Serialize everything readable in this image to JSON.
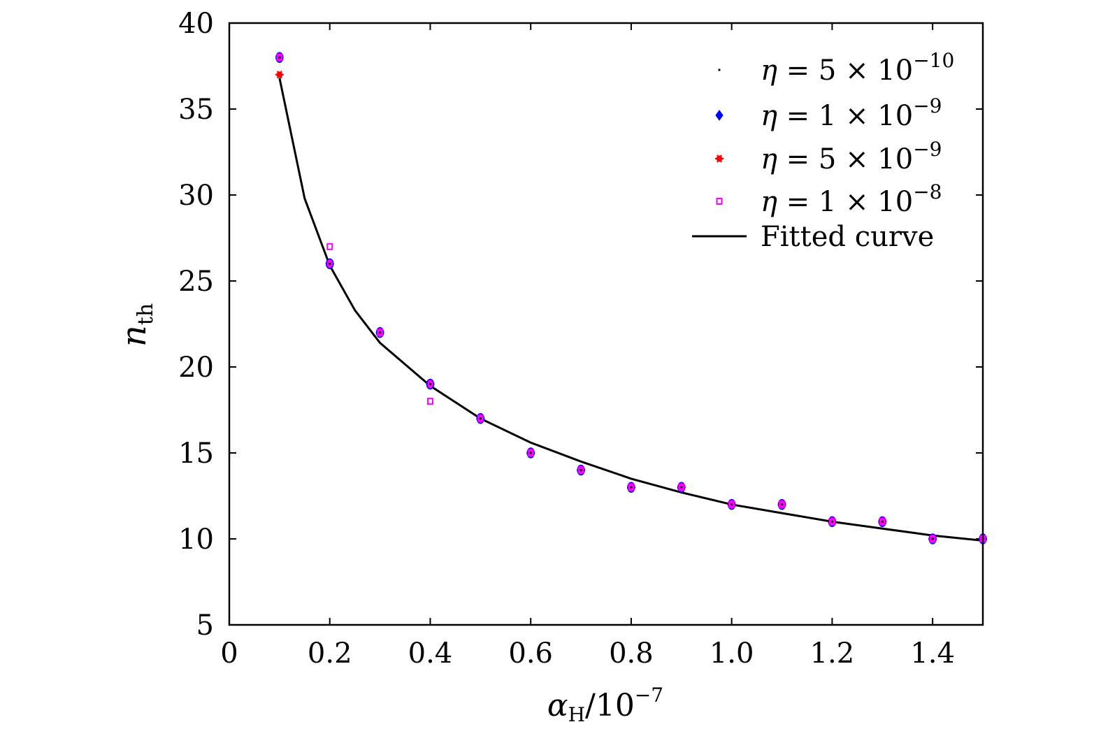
{
  "chart_data": {
    "type": "scatter",
    "xlabel": {
      "symbol": "α",
      "sub": "H",
      "div": "/10",
      "exp": "−7"
    },
    "ylabel": {
      "symbol": "n",
      "sub": "th"
    },
    "xlim": [
      0,
      1.5
    ],
    "ylim": [
      5,
      40
    ],
    "xticks": [
      0,
      0.2,
      0.4,
      0.6,
      0.8,
      1.0,
      1.2,
      1.4
    ],
    "xtick_labels": [
      "0",
      "0.2",
      "0.4",
      "0.6",
      "0.8",
      "1.0",
      "1.2",
      "1.4"
    ],
    "yticks": [
      5,
      10,
      15,
      20,
      25,
      30,
      35,
      40
    ],
    "ytick_labels": [
      "5",
      "10",
      "15",
      "20",
      "25",
      "30",
      "35",
      "40"
    ],
    "grid": false,
    "legend_position": "top-right",
    "series": [
      {
        "name": "η = 5 × 10−10",
        "eta": "η",
        "mant": "5",
        "exp": "−10",
        "color": "#000000",
        "marker": "dot",
        "x": [
          0.1,
          0.2,
          0.3,
          0.4,
          0.5,
          0.6,
          0.7,
          0.8,
          0.9,
          1.0,
          1.1,
          1.2,
          1.3,
          1.4,
          1.5
        ],
        "y": [
          38,
          26,
          22,
          19,
          17,
          15,
          14,
          13,
          13,
          12,
          12,
          11,
          11,
          10,
          10
        ]
      },
      {
        "name": "η = 1 × 10−9",
        "eta": "η",
        "mant": "1",
        "exp": "−9",
        "color": "#0000ff",
        "marker": "diamond",
        "x": [
          0.1,
          0.2,
          0.3,
          0.4,
          0.5,
          0.6,
          0.7,
          0.8,
          0.9,
          1.0,
          1.1,
          1.2,
          1.3,
          1.4,
          1.5
        ],
        "y": [
          38,
          26,
          22,
          19,
          17,
          15,
          14,
          13,
          13,
          12,
          12,
          11,
          11,
          10,
          10
        ]
      },
      {
        "name": "η = 5 × 10−9",
        "eta": "η",
        "mant": "5",
        "exp": "−9",
        "color": "#ff0000",
        "marker": "star",
        "x": [
          0.1,
          0.2,
          0.3,
          0.4,
          0.5,
          0.6,
          0.7,
          0.8,
          0.9,
          1.0,
          1.1,
          1.2,
          1.3,
          1.4,
          1.5
        ],
        "y": [
          37,
          26,
          22,
          19,
          17,
          15,
          14,
          13,
          13,
          12,
          12,
          11,
          11,
          10,
          10
        ]
      },
      {
        "name": "η = 1 × 10−8",
        "eta": "η",
        "mant": "1",
        "exp": "−8",
        "color": "#ff00ff",
        "marker": "square",
        "x": [
          0.1,
          0.2,
          0.3,
          0.4,
          0.5,
          0.6,
          0.7,
          0.8,
          0.9,
          1.0,
          1.1,
          1.2,
          1.3,
          1.4,
          1.5
        ],
        "y": [
          38,
          27,
          22,
          18,
          17,
          15,
          14,
          13,
          13,
          12,
          12,
          11,
          11,
          10,
          10
        ]
      }
    ],
    "fitted_curve": {
      "name": "Fitted curve",
      "color": "#000000",
      "x": [
        0.1,
        0.15,
        0.2,
        0.25,
        0.3,
        0.4,
        0.5,
        0.6,
        0.7,
        0.8,
        0.9,
        1.0,
        1.1,
        1.2,
        1.3,
        1.4,
        1.5
      ],
      "y": [
        36.8,
        29.8,
        25.9,
        23.3,
        21.4,
        18.9,
        17.0,
        15.6,
        14.5,
        13.5,
        12.7,
        12.0,
        11.5,
        11.0,
        10.6,
        10.2,
        9.9
      ]
    }
  }
}
